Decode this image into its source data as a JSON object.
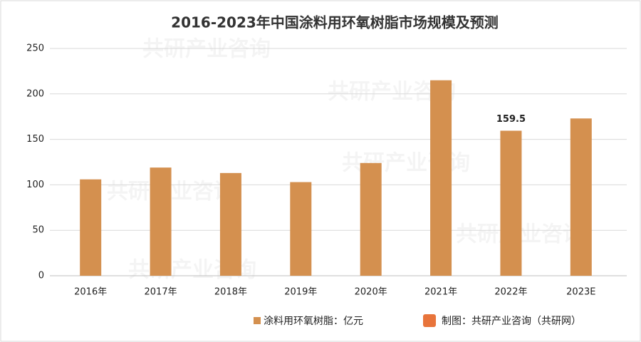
{
  "chart_data": {
    "type": "bar",
    "title": "2016-2023年中国涂料用环氧树脂市场规模及预测",
    "categories": [
      "2016年",
      "2017年",
      "2018年",
      "2019年",
      "2020年",
      "2021年",
      "2022年",
      "2023E"
    ],
    "series": [
      {
        "name": "涂料用环氧树脂：亿元",
        "color": "#d4904f",
        "values": [
          106,
          119,
          113,
          103,
          124,
          215,
          159.5,
          173
        ],
        "value_labels": [
          null,
          null,
          null,
          null,
          null,
          null,
          "159.5",
          null
        ]
      }
    ],
    "ylim": [
      0,
      250
    ],
    "yticks": [
      0,
      50,
      100,
      150,
      200,
      250
    ],
    "grid": true,
    "legend": "bottom",
    "source": "制图：共研产业咨询（共研网）",
    "watermark": "共研产业咨询"
  }
}
